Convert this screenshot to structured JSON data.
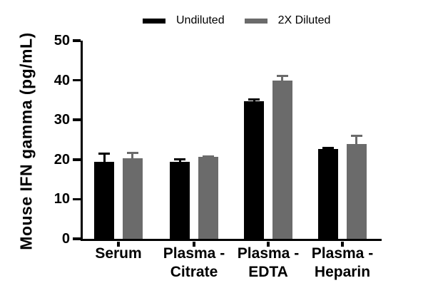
{
  "chart_data": {
    "type": "bar",
    "title": "",
    "ylabel": "Mouse IFN gamma (pg/mL)",
    "xlabel": "",
    "ylim": [
      0,
      50
    ],
    "yticks": [
      0,
      10,
      20,
      30,
      40,
      50
    ],
    "grid": false,
    "legend_position": "top",
    "axis_color": "#000000",
    "categories": [
      "Serum",
      "Plasma - Citrate",
      "Plasma - EDTA",
      "Plasma - Heparin"
    ],
    "category_label_lines": [
      [
        "Serum"
      ],
      [
        "Plasma -",
        "Citrate"
      ],
      [
        "Plasma -",
        "EDTA"
      ],
      [
        "Plasma -",
        "Heparin"
      ]
    ],
    "series": [
      {
        "name": "Undiluted",
        "color": "#000000",
        "values": [
          19.5,
          19.5,
          34.8,
          22.7
        ],
        "errors": [
          2.2,
          0.8,
          0.6,
          0.5
        ]
      },
      {
        "name": "2X Diluted",
        "color": "#6b6b6b",
        "values": [
          20.3,
          20.7,
          40.0,
          23.9
        ],
        "errors": [
          1.7,
          0.4,
          1.3,
          2.3
        ]
      }
    ],
    "error_bar_style": "upper SD with cap"
  }
}
